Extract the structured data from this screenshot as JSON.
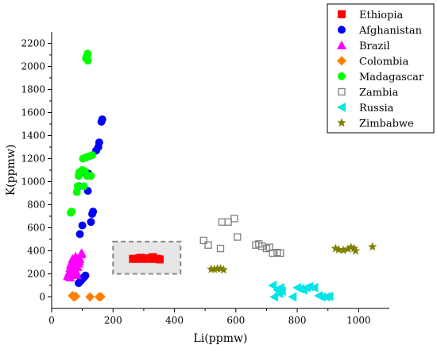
{
  "chart_data": {
    "type": "scatter",
    "xlabel": "Li(ppmw)",
    "ylabel": "K(ppmw)",
    "xlim": [
      0,
      1100
    ],
    "ylim": [
      -100,
      2300
    ],
    "xticks": [
      0,
      200,
      400,
      600,
      800,
      1000
    ],
    "yticks": [
      0,
      200,
      400,
      600,
      800,
      1000,
      1200,
      1400,
      1600,
      1800,
      2000,
      2200
    ],
    "grid": false,
    "legend_position": "top-right",
    "highlight_box": {
      "x": [
        200,
        420
      ],
      "y": [
        200,
        480
      ],
      "color": "#e6e6e6"
    },
    "series": [
      {
        "name": "Ethiopia",
        "marker": "square",
        "color": "#ff0000",
        "points": [
          [
            265,
            330
          ],
          [
            275,
            330
          ],
          [
            285,
            335
          ],
          [
            295,
            330
          ],
          [
            305,
            335
          ],
          [
            315,
            330
          ],
          [
            325,
            338
          ],
          [
            335,
            330
          ],
          [
            345,
            330
          ],
          [
            352,
            325
          ],
          [
            290,
            340
          ],
          [
            330,
            345
          ]
        ]
      },
      {
        "name": "Afghanistan",
        "marker": "circle",
        "color": "#0000ff",
        "points": [
          [
            88,
            120
          ],
          [
            95,
            140
          ],
          [
            100,
            155
          ],
          [
            105,
            170
          ],
          [
            110,
            185
          ],
          [
            92,
            545
          ],
          [
            100,
            620
          ],
          [
            128,
            650
          ],
          [
            132,
            720
          ],
          [
            135,
            740
          ],
          [
            88,
            960
          ],
          [
            118,
            920
          ],
          [
            92,
            1070
          ],
          [
            120,
            1070
          ],
          [
            145,
            1270
          ],
          [
            152,
            1300
          ],
          [
            155,
            1340
          ],
          [
            162,
            1520
          ],
          [
            165,
            1540
          ]
        ]
      },
      {
        "name": "Brazil",
        "marker": "triangle-up",
        "color": "#ff00ff",
        "points": [
          [
            52,
            180
          ],
          [
            55,
            200
          ],
          [
            58,
            220
          ],
          [
            60,
            250
          ],
          [
            62,
            280
          ],
          [
            65,
            300
          ],
          [
            68,
            330
          ],
          [
            70,
            260
          ],
          [
            72,
            240
          ],
          [
            75,
            300
          ],
          [
            78,
            350
          ],
          [
            80,
            220
          ],
          [
            82,
            190
          ],
          [
            85,
            260
          ],
          [
            88,
            290
          ],
          [
            90,
            310
          ],
          [
            92,
            330
          ],
          [
            95,
            370
          ],
          [
            98,
            380
          ],
          [
            60,
            170
          ],
          [
            70,
            200
          ],
          [
            85,
            330
          ]
        ]
      },
      {
        "name": "Colombia",
        "marker": "diamond",
        "color": "#ff8000",
        "points": [
          [
            68,
            10
          ],
          [
            72,
            0
          ],
          [
            78,
            5
          ],
          [
            125,
            0
          ],
          [
            155,
            0
          ],
          [
            160,
            2
          ]
        ]
      },
      {
        "name": "Madagascar",
        "marker": "circle",
        "color": "#00ff00",
        "points": [
          [
            62,
            730
          ],
          [
            65,
            740
          ],
          [
            82,
            910
          ],
          [
            85,
            960
          ],
          [
            105,
            960
          ],
          [
            88,
            1050
          ],
          [
            90,
            1080
          ],
          [
            95,
            1090
          ],
          [
            100,
            1100
          ],
          [
            108,
            1090
          ],
          [
            115,
            1050
          ],
          [
            128,
            1050
          ],
          [
            102,
            1200
          ],
          [
            112,
            1210
          ],
          [
            122,
            1220
          ],
          [
            132,
            1230
          ],
          [
            112,
            2070
          ],
          [
            115,
            2090
          ],
          [
            117,
            2110
          ],
          [
            118,
            2050
          ]
        ]
      },
      {
        "name": "Zambia",
        "marker": "square-open",
        "color": "#808080",
        "points": [
          [
            495,
            490
          ],
          [
            510,
            450
          ],
          [
            550,
            420
          ],
          [
            555,
            650
          ],
          [
            575,
            650
          ],
          [
            595,
            680
          ],
          [
            605,
            520
          ],
          [
            665,
            450
          ],
          [
            675,
            460
          ],
          [
            685,
            440
          ],
          [
            700,
            420
          ],
          [
            710,
            430
          ],
          [
            720,
            380
          ],
          [
            735,
            385
          ],
          [
            745,
            380
          ]
        ]
      },
      {
        "name": "Russia",
        "marker": "triangle-left",
        "color": "#00e5e5",
        "points": [
          [
            720,
            100
          ],
          [
            725,
            0
          ],
          [
            735,
            60
          ],
          [
            740,
            30
          ],
          [
            745,
            80
          ],
          [
            750,
            50
          ],
          [
            785,
            0
          ],
          [
            800,
            80
          ],
          [
            810,
            70
          ],
          [
            820,
            60
          ],
          [
            830,
            80
          ],
          [
            840,
            90
          ],
          [
            855,
            80
          ],
          [
            870,
            10
          ],
          [
            880,
            0
          ],
          [
            895,
            0
          ],
          [
            905,
            5
          ]
        ]
      },
      {
        "name": "Zimbabwe",
        "marker": "star",
        "color": "#808000",
        "points": [
          [
            520,
            240
          ],
          [
            530,
            240
          ],
          [
            540,
            245
          ],
          [
            550,
            245
          ],
          [
            560,
            235
          ],
          [
            925,
            420
          ],
          [
            935,
            410
          ],
          [
            950,
            405
          ],
          [
            965,
            415
          ],
          [
            975,
            430
          ],
          [
            985,
            420
          ],
          [
            990,
            400
          ],
          [
            1045,
            435
          ]
        ]
      }
    ]
  }
}
